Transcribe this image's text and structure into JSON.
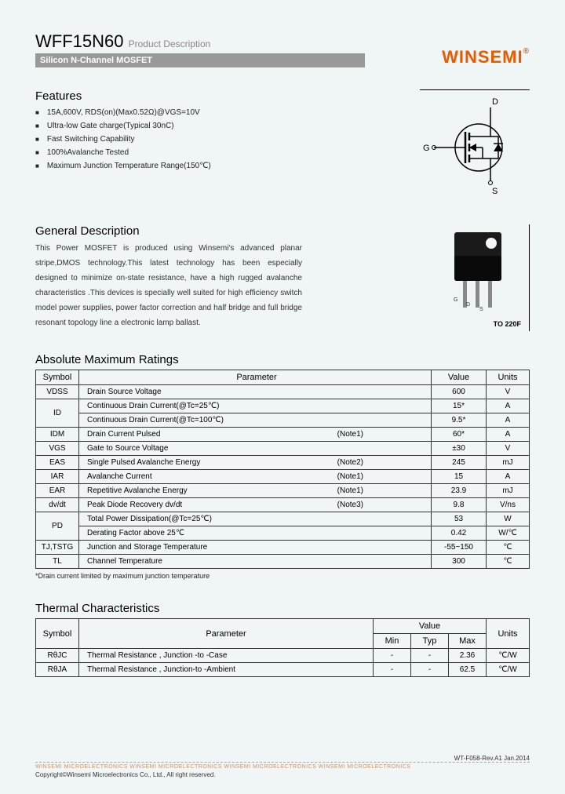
{
  "header": {
    "part_number": "WFF15N60",
    "subtitle": "Product Description",
    "category": "Silicon N-Channel MOSFET",
    "company": "WINSEMI"
  },
  "features": {
    "title": "Features",
    "items": [
      "15A,600V, RDS(on)(Max0.52Ω)@VGS=10V",
      "Ultra-low Gate charge(Typical 30nC)",
      "Fast Switching Capability",
      "100%Avalanche Tested",
      "Maximum Junction Temperature Range(150℃)"
    ]
  },
  "symbol_labels": {
    "d": "D",
    "g": "G",
    "s": "S"
  },
  "general": {
    "title": "General Description",
    "text": "This Power MOSFET is produced using Winsemi's advanced planar stripe,DMOS technology.This latest technology has been especially designed to minimize on-state resistance, have a high rugged avalanche characteristics .This devices is specially well suited for high efficiency switch model power supplies, power factor correction and half bridge and full bridge resonant topology line a electronic lamp ballast."
  },
  "package": {
    "label": "TO 220F",
    "pins": [
      "G",
      "D",
      "S"
    ]
  },
  "abs_max": {
    "title": "Absolute Maximum Ratings",
    "headers": [
      "Symbol",
      "Parameter",
      "Value",
      "Units"
    ],
    "rows": [
      {
        "sym": "VDSS",
        "param": "Drain Source Voltage",
        "note": "",
        "val": "600",
        "unit": "V",
        "rowspan": 1
      },
      {
        "sym": "ID",
        "param": "Continuous Drain Current(@Tc=25℃)",
        "note": "",
        "val": "15*",
        "unit": "A",
        "rowspan": 2
      },
      {
        "sym": "",
        "param": "Continuous Drain Current(@Tc=100℃)",
        "note": "",
        "val": "9.5*",
        "unit": "A"
      },
      {
        "sym": "IDM",
        "param": "Drain Current Pulsed",
        "note": "(Note1)",
        "val": "60*",
        "unit": "A",
        "rowspan": 1
      },
      {
        "sym": "VGS",
        "param": "Gate to Source Voltage",
        "note": "",
        "val": "±30",
        "unit": "V",
        "rowspan": 1
      },
      {
        "sym": "EAS",
        "param": "Single Pulsed Avalanche Energy",
        "note": "(Note2)",
        "val": "245",
        "unit": "mJ",
        "rowspan": 1
      },
      {
        "sym": "IAR",
        "param": "Avalanche Current",
        "note": "(Note1)",
        "val": "15",
        "unit": "A",
        "rowspan": 1
      },
      {
        "sym": "EAR",
        "param": "Repetitive Avalanche Energy",
        "note": "(Note1)",
        "val": "23.9",
        "unit": "mJ",
        "rowspan": 1
      },
      {
        "sym": "dv/dt",
        "param": "Peak Diode Recovery dv/dt",
        "note": "(Note3)",
        "val": "9.8",
        "unit": "V/ns",
        "rowspan": 1
      },
      {
        "sym": "PD",
        "param": "Total Power Dissipation(@Tc=25℃)",
        "note": "",
        "val": "53",
        "unit": "W",
        "rowspan": 2
      },
      {
        "sym": "",
        "param": "Derating Factor above 25℃",
        "note": "",
        "val": "0.42",
        "unit": "W/℃"
      },
      {
        "sym": "TJ,TSTG",
        "param": "Junction and Storage Temperature",
        "note": "",
        "val": "-55~150",
        "unit": "℃",
        "rowspan": 1
      },
      {
        "sym": "TL",
        "param": "Channel Temperature",
        "note": "",
        "val": "300",
        "unit": "℃",
        "rowspan": 1
      }
    ],
    "footnote": "*Drain current limited by maximum junction temperature"
  },
  "thermal": {
    "title": "Thermal Characteristics",
    "headers": {
      "sym": "Symbol",
      "param": "Parameter",
      "val": "Value",
      "min": "Min",
      "typ": "Typ",
      "max": "Max",
      "unit": "Units"
    },
    "rows": [
      {
        "sym": "RθJC",
        "param": "Thermal Resistance , Junction -to -Case",
        "min": "-",
        "typ": "-",
        "max": "2.36",
        "unit": "℃/W"
      },
      {
        "sym": "RθJA",
        "param": "Thermal Resistance , Junction-to -Ambient",
        "min": "-",
        "typ": "-",
        "max": "62.5",
        "unit": "℃/W"
      }
    ]
  },
  "footer": {
    "watermark": "WINSEMI   MICROELECTRONICS    WINSEMI   MICROELECTRONICS    WINSEMI   MICROELECTRONICS    WINSEMI   MICROELECTRONICS",
    "copyright": "Copyright©Winsemi Microelectronics Co., Ltd., All right reserved.",
    "rev": "WT-F058-Rev.A1 Jan.2014"
  }
}
